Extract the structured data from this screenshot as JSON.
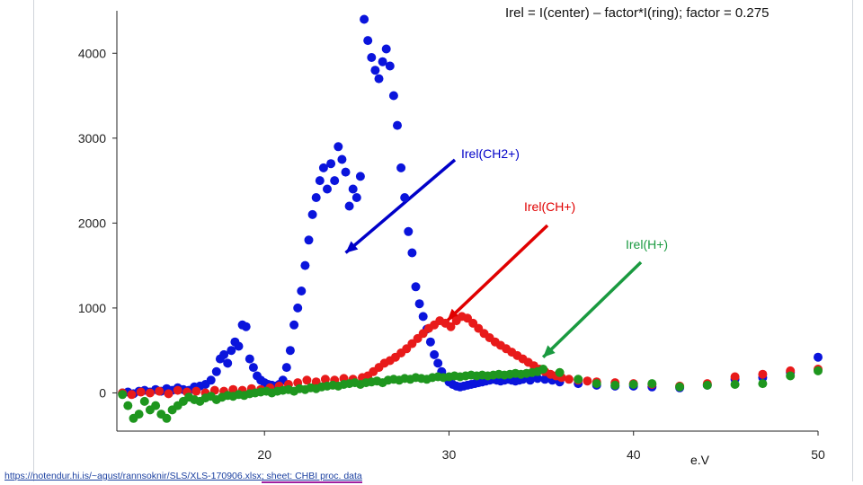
{
  "title": "Irel = I(center) – factor*I(ring); factor = 0.275",
  "source": {
    "link_text": "https://notendur.hi.is/~agust/rannsoknir/SLS/XLS-170906.xlsx",
    "sheet_text": "; sheet: CHBI proc. data"
  },
  "chart_data": {
    "type": "scatter",
    "title": "Irel = I(center) – factor*I(ring); factor = 0.275",
    "xlabel": "e.V",
    "ylabel": "",
    "xlim": [
      12,
      50
    ],
    "ylim": [
      -450,
      4500
    ],
    "xticks": [
      "20",
      "30",
      "40",
      "50"
    ],
    "yticks": [
      "0",
      "1000",
      "2000",
      "3000",
      "4000"
    ],
    "xtick_values": [
      20,
      30,
      40,
      50
    ],
    "ytick_values": [
      0,
      1000,
      2000,
      3000,
      4000
    ],
    "grid": false,
    "annotations": [
      {
        "text": "Irel(CH2+)",
        "color": "#0000c8",
        "arrow_to": [
          24.4,
          1650
        ]
      },
      {
        "text": "Irel(CH+)",
        "color": "#e00000",
        "arrow_to": [
          29.9,
          850
        ]
      },
      {
        "text": "Irel(H+)",
        "color": "#1a9a40",
        "arrow_to": [
          35.1,
          420
        ]
      }
    ],
    "series": [
      {
        "color": "#0a14dc",
        "points": [
          [
            12.3,
            0
          ],
          [
            12.6,
            10
          ],
          [
            12.9,
            -10
          ],
          [
            13.2,
            20
          ],
          [
            13.5,
            30
          ],
          [
            13.8,
            10
          ],
          [
            14.1,
            40
          ],
          [
            14.4,
            20
          ],
          [
            14.7,
            50
          ],
          [
            15.0,
            30
          ],
          [
            15.3,
            60
          ],
          [
            15.6,
            40
          ],
          [
            15.9,
            30
          ],
          [
            16.2,
            70
          ],
          [
            16.5,
            80
          ],
          [
            16.8,
            100
          ],
          [
            17.1,
            150
          ],
          [
            17.4,
            250
          ],
          [
            17.6,
            400
          ],
          [
            17.8,
            450
          ],
          [
            18.0,
            350
          ],
          [
            18.2,
            500
          ],
          [
            18.4,
            600
          ],
          [
            18.6,
            550
          ],
          [
            18.8,
            800
          ],
          [
            19.0,
            780
          ],
          [
            19.2,
            400
          ],
          [
            19.4,
            300
          ],
          [
            19.6,
            200
          ],
          [
            19.8,
            150
          ],
          [
            20.0,
            120
          ],
          [
            20.2,
            100
          ],
          [
            20.4,
            90
          ],
          [
            20.6,
            80
          ],
          [
            20.8,
            100
          ],
          [
            21.0,
            150
          ],
          [
            21.2,
            300
          ],
          [
            21.4,
            500
          ],
          [
            21.6,
            800
          ],
          [
            21.8,
            1000
          ],
          [
            22.0,
            1200
          ],
          [
            22.2,
            1500
          ],
          [
            22.4,
            1800
          ],
          [
            22.6,
            2100
          ],
          [
            22.8,
            2300
          ],
          [
            23.0,
            2500
          ],
          [
            23.2,
            2650
          ],
          [
            23.4,
            2400
          ],
          [
            23.6,
            2700
          ],
          [
            23.8,
            2500
          ],
          [
            24.0,
            2900
          ],
          [
            24.2,
            2750
          ],
          [
            24.4,
            2600
          ],
          [
            24.6,
            2200
          ],
          [
            24.8,
            2400
          ],
          [
            25.0,
            2300
          ],
          [
            25.2,
            2550
          ],
          [
            25.4,
            4400
          ],
          [
            25.6,
            4150
          ],
          [
            25.8,
            3950
          ],
          [
            26.0,
            3800
          ],
          [
            26.2,
            3700
          ],
          [
            26.4,
            3900
          ],
          [
            26.6,
            4050
          ],
          [
            26.8,
            3850
          ],
          [
            27.0,
            3500
          ],
          [
            27.2,
            3150
          ],
          [
            27.4,
            2650
          ],
          [
            27.6,
            2300
          ],
          [
            27.8,
            1900
          ],
          [
            28.0,
            1650
          ],
          [
            28.2,
            1250
          ],
          [
            28.4,
            1050
          ],
          [
            28.6,
            900
          ],
          [
            28.8,
            750
          ],
          [
            29.0,
            600
          ],
          [
            29.2,
            450
          ],
          [
            29.4,
            350
          ],
          [
            29.6,
            250
          ],
          [
            29.8,
            180
          ],
          [
            30.0,
            130
          ],
          [
            30.2,
            100
          ],
          [
            30.4,
            80
          ],
          [
            30.6,
            70
          ],
          [
            30.8,
            80
          ],
          [
            31.0,
            90
          ],
          [
            31.2,
            100
          ],
          [
            31.4,
            110
          ],
          [
            31.6,
            120
          ],
          [
            31.8,
            130
          ],
          [
            32.0,
            140
          ],
          [
            32.2,
            150
          ],
          [
            32.4,
            160
          ],
          [
            32.6,
            150
          ],
          [
            32.8,
            140
          ],
          [
            33.0,
            150
          ],
          [
            33.2,
            160
          ],
          [
            33.4,
            150
          ],
          [
            33.6,
            140
          ],
          [
            33.8,
            150
          ],
          [
            34.0,
            160
          ],
          [
            34.4,
            150
          ],
          [
            34.8,
            170
          ],
          [
            35.2,
            160
          ],
          [
            35.6,
            150
          ],
          [
            36.0,
            130
          ],
          [
            37.0,
            110
          ],
          [
            38.0,
            90
          ],
          [
            39.0,
            80
          ],
          [
            40.0,
            80
          ],
          [
            41.0,
            70
          ],
          [
            42.5,
            60
          ],
          [
            44.0,
            90
          ],
          [
            45.5,
            160
          ],
          [
            47.0,
            180
          ],
          [
            48.5,
            240
          ],
          [
            50.0,
            420
          ]
        ]
      },
      {
        "color": "#e81a1a",
        "points": [
          [
            12.3,
            0
          ],
          [
            12.8,
            -20
          ],
          [
            13.3,
            10
          ],
          [
            13.8,
            0
          ],
          [
            14.3,
            20
          ],
          [
            14.8,
            -10
          ],
          [
            15.3,
            30
          ],
          [
            15.8,
            10
          ],
          [
            16.3,
            20
          ],
          [
            16.8,
            0
          ],
          [
            17.3,
            30
          ],
          [
            17.8,
            20
          ],
          [
            18.3,
            40
          ],
          [
            18.8,
            30
          ],
          [
            19.3,
            50
          ],
          [
            19.8,
            40
          ],
          [
            20.3,
            60
          ],
          [
            20.8,
            80
          ],
          [
            21.3,
            100
          ],
          [
            21.8,
            120
          ],
          [
            22.3,
            150
          ],
          [
            22.8,
            130
          ],
          [
            23.3,
            160
          ],
          [
            23.8,
            150
          ],
          [
            24.3,
            170
          ],
          [
            24.8,
            160
          ],
          [
            25.3,
            180
          ],
          [
            25.6,
            200
          ],
          [
            25.9,
            250
          ],
          [
            26.2,
            300
          ],
          [
            26.5,
            350
          ],
          [
            26.8,
            380
          ],
          [
            27.1,
            420
          ],
          [
            27.4,
            470
          ],
          [
            27.7,
            520
          ],
          [
            28.0,
            580
          ],
          [
            28.3,
            640
          ],
          [
            28.6,
            700
          ],
          [
            28.9,
            760
          ],
          [
            29.2,
            800
          ],
          [
            29.5,
            850
          ],
          [
            29.8,
            820
          ],
          [
            30.1,
            780
          ],
          [
            30.4,
            850
          ],
          [
            30.7,
            900
          ],
          [
            31.0,
            880
          ],
          [
            31.3,
            820
          ],
          [
            31.6,
            760
          ],
          [
            31.9,
            700
          ],
          [
            32.2,
            650
          ],
          [
            32.5,
            600
          ],
          [
            32.8,
            560
          ],
          [
            33.1,
            520
          ],
          [
            33.4,
            480
          ],
          [
            33.7,
            440
          ],
          [
            34.0,
            400
          ],
          [
            34.3,
            360
          ],
          [
            34.6,
            320
          ],
          [
            34.9,
            280
          ],
          [
            35.2,
            250
          ],
          [
            35.5,
            220
          ],
          [
            35.8,
            200
          ],
          [
            36.1,
            180
          ],
          [
            36.5,
            160
          ],
          [
            37.0,
            150
          ],
          [
            37.5,
            140
          ],
          [
            38.0,
            130
          ],
          [
            39.0,
            120
          ],
          [
            40.0,
            110
          ],
          [
            41.0,
            100
          ],
          [
            42.5,
            80
          ],
          [
            44.0,
            110
          ],
          [
            45.5,
            190
          ],
          [
            47.0,
            220
          ],
          [
            48.5,
            260
          ],
          [
            50.0,
            280
          ]
        ]
      },
      {
        "color": "#1e961e",
        "points": [
          [
            12.3,
            -20
          ],
          [
            12.6,
            -150
          ],
          [
            12.9,
            -300
          ],
          [
            13.2,
            -250
          ],
          [
            13.5,
            -100
          ],
          [
            13.8,
            -200
          ],
          [
            14.1,
            -150
          ],
          [
            14.4,
            -250
          ],
          [
            14.7,
            -300
          ],
          [
            15.0,
            -200
          ],
          [
            15.3,
            -150
          ],
          [
            15.6,
            -100
          ],
          [
            15.9,
            -50
          ],
          [
            16.2,
            -80
          ],
          [
            16.5,
            -100
          ],
          [
            16.8,
            -60
          ],
          [
            17.1,
            -40
          ],
          [
            17.4,
            -80
          ],
          [
            17.7,
            -50
          ],
          [
            18.0,
            -30
          ],
          [
            18.3,
            -40
          ],
          [
            18.6,
            -20
          ],
          [
            18.9,
            -30
          ],
          [
            19.2,
            -10
          ],
          [
            19.5,
            0
          ],
          [
            19.8,
            10
          ],
          [
            20.1,
            20
          ],
          [
            20.4,
            0
          ],
          [
            20.7,
            20
          ],
          [
            21.0,
            30
          ],
          [
            21.3,
            40
          ],
          [
            21.6,
            20
          ],
          [
            21.9,
            50
          ],
          [
            22.2,
            40
          ],
          [
            22.5,
            60
          ],
          [
            22.8,
            50
          ],
          [
            23.1,
            70
          ],
          [
            23.4,
            80
          ],
          [
            23.7,
            90
          ],
          [
            24.0,
            80
          ],
          [
            24.3,
            100
          ],
          [
            24.6,
            110
          ],
          [
            24.9,
            120
          ],
          [
            25.2,
            100
          ],
          [
            25.5,
            120
          ],
          [
            25.8,
            130
          ],
          [
            26.1,
            140
          ],
          [
            26.4,
            120
          ],
          [
            26.7,
            150
          ],
          [
            27.0,
            160
          ],
          [
            27.3,
            150
          ],
          [
            27.6,
            170
          ],
          [
            27.9,
            160
          ],
          [
            28.2,
            180
          ],
          [
            28.5,
            170
          ],
          [
            28.8,
            160
          ],
          [
            29.1,
            180
          ],
          [
            29.4,
            190
          ],
          [
            29.7,
            180
          ],
          [
            30.0,
            190
          ],
          [
            30.3,
            200
          ],
          [
            30.6,
            190
          ],
          [
            30.9,
            200
          ],
          [
            31.2,
            210
          ],
          [
            31.5,
            200
          ],
          [
            31.8,
            210
          ],
          [
            32.1,
            200
          ],
          [
            32.4,
            210
          ],
          [
            32.7,
            220
          ],
          [
            33.0,
            210
          ],
          [
            33.3,
            220
          ],
          [
            33.6,
            230
          ],
          [
            33.9,
            220
          ],
          [
            34.2,
            230
          ],
          [
            34.5,
            240
          ],
          [
            34.8,
            250
          ],
          [
            35.1,
            280
          ],
          [
            36.0,
            240
          ],
          [
            37.0,
            160
          ],
          [
            38.0,
            110
          ],
          [
            39.0,
            90
          ],
          [
            40.0,
            100
          ],
          [
            41.0,
            110
          ],
          [
            42.5,
            70
          ],
          [
            44.0,
            90
          ],
          [
            45.5,
            100
          ],
          [
            47.0,
            110
          ],
          [
            48.5,
            200
          ],
          [
            50.0,
            260
          ]
        ]
      }
    ]
  }
}
